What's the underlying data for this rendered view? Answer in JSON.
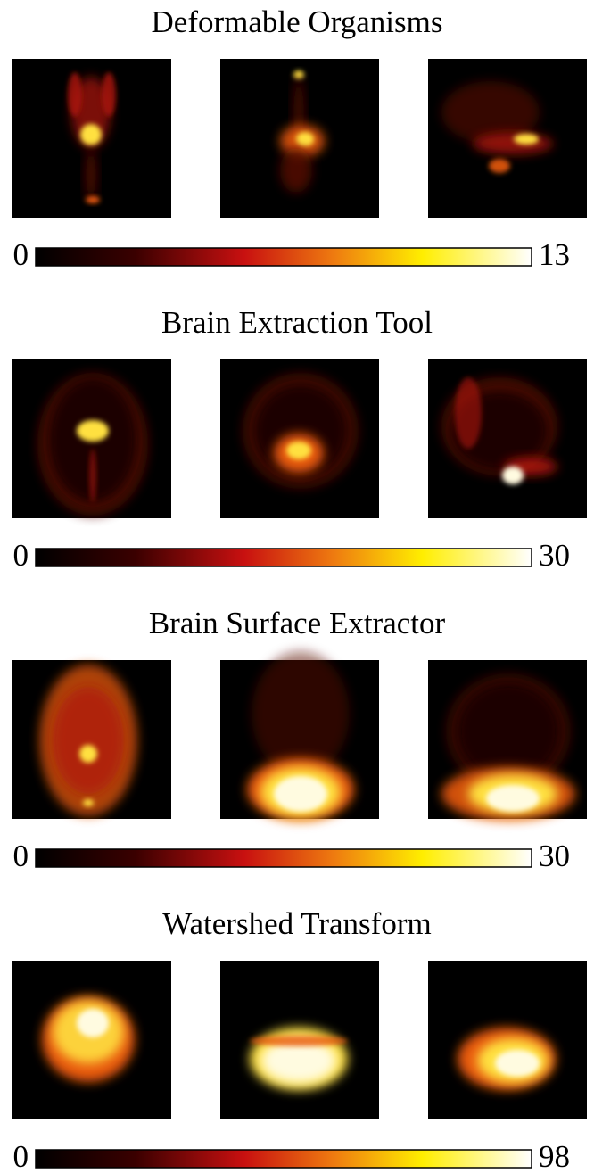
{
  "panels": [
    {
      "title": "Deformable Organisms",
      "colorbar": {
        "min": 0,
        "max": 13
      }
    },
    {
      "title": "Brain Extraction Tool",
      "colorbar": {
        "min": 0,
        "max": 30
      }
    },
    {
      "title": "Brain Surface Extractor",
      "colorbar": {
        "min": 0,
        "max": 30
      }
    },
    {
      "title": "Watershed Transform",
      "colorbar": {
        "min": 0,
        "max": 98
      }
    }
  ]
}
